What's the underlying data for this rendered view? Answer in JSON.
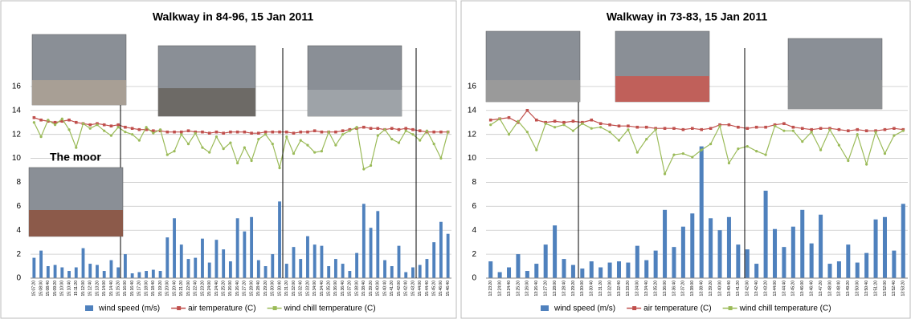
{
  "chart_data": [
    {
      "type": "bar-line",
      "title": "Walkway in 84-96, 15 Jan 2011",
      "annotation": "The moor",
      "categories": [
        "15:07:20",
        "15:08:00",
        "15:08:40",
        "15:09:20",
        "15:10:00",
        "15:10:40",
        "15:11:20",
        "15:12:00",
        "15:12:40",
        "15:13:20",
        "15:14:00",
        "15:14:40",
        "15:15:20",
        "15:16:00",
        "15:16:40",
        "15:17:20",
        "15:18:00",
        "15:18:40",
        "15:19:20",
        "15:20:00",
        "15:20:40",
        "15:21:20",
        "15:22:00",
        "15:22:40",
        "15:23:20",
        "15:24:00",
        "15:24:40",
        "15:25:20",
        "15:26:00",
        "15:26:40",
        "15:27:20",
        "15:28:00",
        "15:28:40",
        "15:29:20",
        "15:30:00",
        "15:30:40",
        "15:31:20",
        "15:32:00",
        "15:32:40",
        "15:33:20",
        "15:34:00",
        "15:34:40",
        "15:35:20",
        "15:36:00",
        "15:36:40",
        "15:37:20",
        "15:38:00",
        "15:38:40",
        "15:39:20",
        "15:40:00",
        "15:40:40",
        "15:41:20",
        "15:42:00",
        "15:42:40",
        "15:43:20",
        "15:44:00",
        "15:44:40",
        "15:45:20",
        "15:46:00",
        "15:46:40"
      ],
      "series": [
        {
          "name": "wind speed (m/s)",
          "kind": "bar",
          "color": "#4f81bd",
          "values": [
            1.7,
            2.3,
            1.0,
            1.1,
            0.9,
            0.6,
            0.9,
            2.5,
            1.2,
            1.1,
            0.6,
            1.5,
            0.9,
            2.0,
            0.4,
            0.5,
            0.6,
            0.7,
            0.6,
            3.4,
            5.0,
            2.8,
            1.6,
            1.7,
            3.3,
            1.3,
            3.2,
            2.4,
            1.4,
            5.0,
            3.9,
            5.1,
            1.5,
            1.0,
            2.0,
            6.4,
            1.2,
            2.6,
            1.6,
            3.5,
            2.8,
            2.7,
            1.0,
            1.6,
            1.2,
            0.6,
            2.1,
            6.2,
            4.2,
            5.6,
            1.5,
            1.0,
            2.7,
            0.5,
            0.9,
            1.1,
            1.6,
            3.0,
            4.7,
            3.7
          ]
        },
        {
          "name": "air temperature (C)",
          "kind": "line",
          "color": "#c0504d",
          "values": [
            13.4,
            13.2,
            13.1,
            13.0,
            13.1,
            13.2,
            13.0,
            12.9,
            12.8,
            12.9,
            12.8,
            12.7,
            12.8,
            12.6,
            12.5,
            12.4,
            12.4,
            12.3,
            12.3,
            12.2,
            12.2,
            12.2,
            12.3,
            12.2,
            12.2,
            12.1,
            12.2,
            12.1,
            12.2,
            12.2,
            12.2,
            12.1,
            12.1,
            12.2,
            12.2,
            12.2,
            12.2,
            12.1,
            12.2,
            12.2,
            12.3,
            12.2,
            12.2,
            12.2,
            12.3,
            12.4,
            12.5,
            12.6,
            12.5,
            12.5,
            12.4,
            12.5,
            12.4,
            12.5,
            12.4,
            12.3,
            12.2,
            12.2,
            12.2,
            12.2
          ]
        },
        {
          "name": "wind chill temperature (C)",
          "kind": "line",
          "color": "#9bbb59",
          "values": [
            13.0,
            11.8,
            13.2,
            12.8,
            13.3,
            12.4,
            10.9,
            12.9,
            12.5,
            12.8,
            12.3,
            11.9,
            12.6,
            12.2,
            12.0,
            11.5,
            12.6,
            12.1,
            12.4,
            10.3,
            10.6,
            12.0,
            11.2,
            12.1,
            10.9,
            10.5,
            11.8,
            10.8,
            11.3,
            9.6,
            10.9,
            9.8,
            11.6,
            12.0,
            11.2,
            9.2,
            11.8,
            10.4,
            11.5,
            11.1,
            10.5,
            10.6,
            12.2,
            11.1,
            12.0,
            12.3,
            12.6,
            9.1,
            9.4,
            11.9,
            12.4,
            11.6,
            11.3,
            12.3,
            12.0,
            11.5,
            12.3,
            11.2,
            10.0,
            12.2
          ]
        }
      ],
      "ylim": [
        0,
        18
      ],
      "yticks": [
        0,
        2,
        4,
        6,
        8,
        10,
        12,
        14,
        16
      ],
      "grid": true
    },
    {
      "type": "bar-line",
      "title": "Walkway in 73-83, 15 Jan 2011",
      "categories": [
        "13:23:20",
        "13:24:00",
        "13:24:40",
        "13:25:20",
        "13:26:00",
        "13:26:40",
        "13:27:20",
        "13:28:00",
        "13:28:40",
        "13:29:20",
        "13:30:00",
        "13:30:40",
        "13:31:20",
        "13:32:00",
        "13:32:40",
        "13:33:20",
        "13:34:00",
        "13:34:40",
        "13:35:20",
        "13:36:00",
        "13:36:40",
        "13:37:20",
        "13:38:00",
        "13:38:40",
        "13:39:20",
        "13:40:00",
        "13:40:40",
        "13:41:20",
        "13:42:00",
        "13:42:40",
        "13:43:20",
        "13:44:00",
        "13:44:40",
        "13:45:20",
        "13:46:00",
        "13:46:40",
        "13:47:20",
        "13:48:00",
        "13:48:40",
        "13:49:20",
        "13:50:00",
        "13:50:40",
        "13:51:20",
        "13:52:00",
        "13:52:40",
        "13:53:20"
      ],
      "series": [
        {
          "name": "wind speed (m/s)",
          "kind": "bar",
          "color": "#4f81bd",
          "values": [
            1.4,
            0.5,
            0.9,
            2.0,
            0.6,
            1.2,
            2.8,
            4.4,
            1.6,
            1.1,
            0.8,
            1.4,
            0.9,
            1.3,
            1.4,
            1.3,
            2.7,
            1.5,
            2.3,
            5.7,
            2.6,
            4.3,
            5.4,
            11.0,
            5.0,
            4.0,
            5.1,
            2.8,
            2.4,
            1.2,
            7.3,
            4.1,
            2.6,
            4.3,
            5.7,
            2.9,
            5.3,
            1.2,
            1.4,
            2.8,
            1.3,
            2.1,
            4.9,
            5.1,
            2.3,
            6.2
          ]
        },
        {
          "name": "air temperature (C)",
          "kind": "line",
          "color": "#c0504d",
          "values": [
            13.2,
            13.3,
            13.4,
            13.0,
            14.0,
            13.2,
            13.0,
            13.1,
            13.0,
            13.1,
            13.0,
            13.2,
            12.9,
            12.8,
            12.7,
            12.7,
            12.6,
            12.6,
            12.5,
            12.5,
            12.5,
            12.4,
            12.5,
            12.4,
            12.5,
            12.8,
            12.8,
            12.6,
            12.5,
            12.6,
            12.6,
            12.8,
            12.9,
            12.6,
            12.5,
            12.4,
            12.5,
            12.5,
            12.4,
            12.3,
            12.4,
            12.3,
            12.3,
            12.4,
            12.5,
            12.4
          ]
        },
        {
          "name": "wind chill temperature (C)",
          "kind": "line",
          "color": "#9bbb59",
          "values": [
            12.8,
            13.3,
            12.0,
            13.1,
            12.2,
            10.7,
            12.9,
            12.6,
            12.8,
            12.3,
            12.9,
            12.5,
            12.6,
            12.2,
            11.5,
            12.4,
            10.5,
            11.6,
            12.4,
            8.7,
            10.3,
            10.4,
            10.1,
            10.7,
            11.2,
            12.7,
            9.6,
            10.8,
            11.0,
            10.6,
            10.3,
            12.7,
            12.3,
            12.3,
            11.4,
            12.2,
            10.7,
            12.4,
            11.1,
            9.8,
            12.0,
            9.5,
            12.2,
            10.4,
            11.9,
            12.3
          ]
        }
      ],
      "ylim": [
        0,
        18
      ],
      "yticks": [
        0,
        2,
        4,
        6,
        8,
        10,
        12,
        14,
        16
      ],
      "grid": true
    }
  ]
}
